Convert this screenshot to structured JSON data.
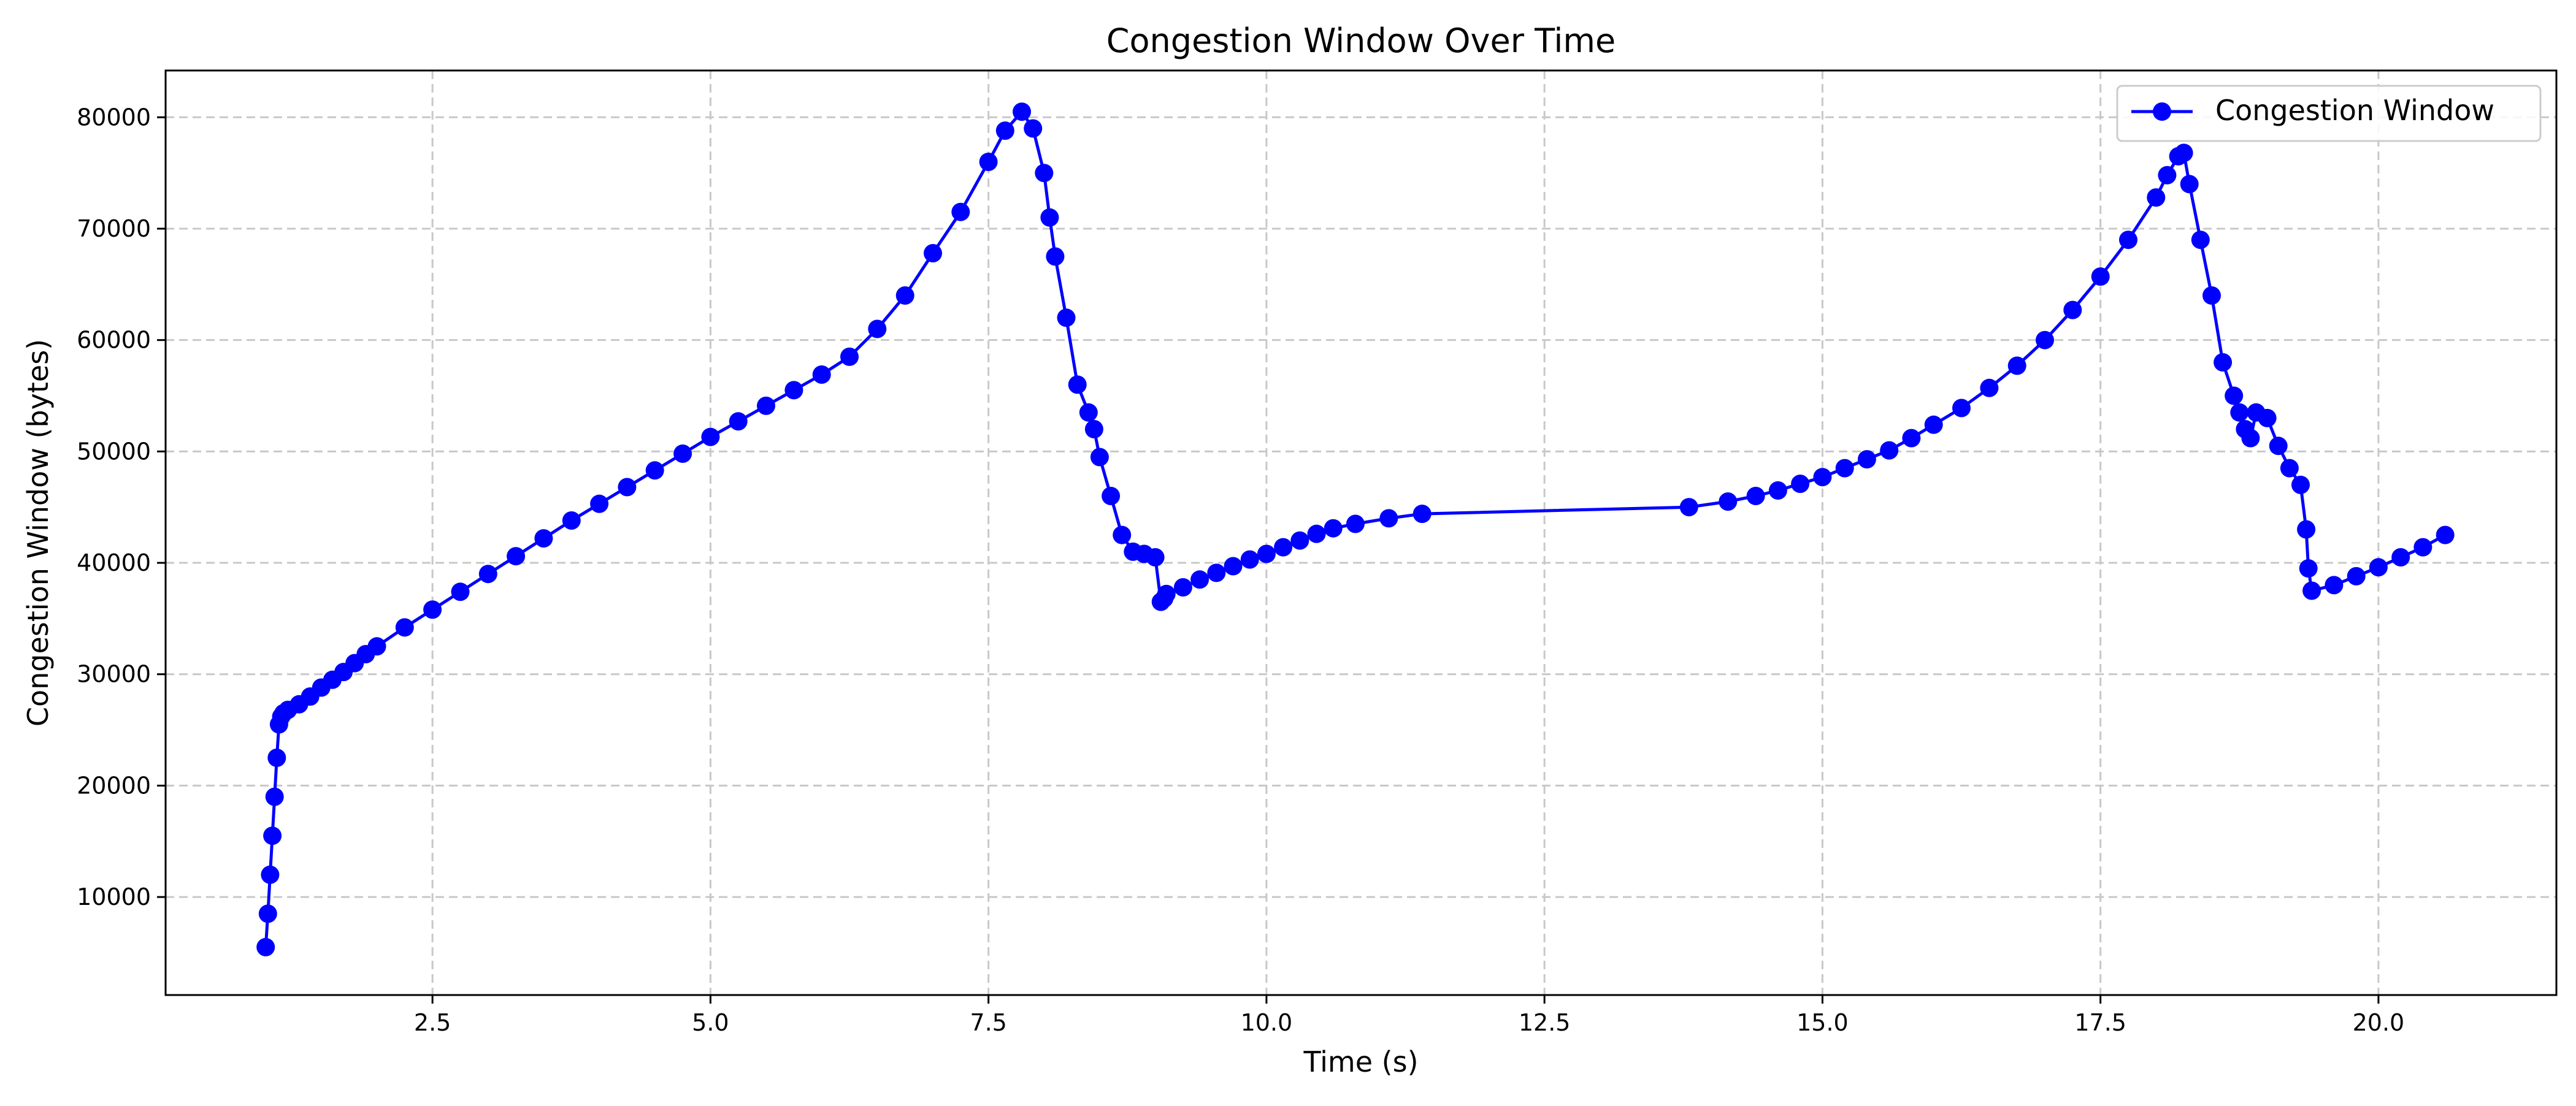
{
  "chart_data": {
    "type": "line",
    "title": "Congestion Window Over Time",
    "xlabel": "Time (s)",
    "ylabel": "Congestion Window (bytes)",
    "xlim": [
      0.1,
      21.6
    ],
    "ylim": [
      1200,
      84200
    ],
    "xticks": [
      2.5,
      5.0,
      7.5,
      10.0,
      12.5,
      15.0,
      17.5,
      20.0
    ],
    "xtick_labels": [
      "2.5",
      "5.0",
      "7.5",
      "10.0",
      "12.5",
      "15.0",
      "17.5",
      "20.0"
    ],
    "yticks": [
      10000,
      20000,
      30000,
      40000,
      50000,
      60000,
      70000,
      80000
    ],
    "ytick_labels": [
      "10000",
      "20000",
      "30000",
      "40000",
      "50000",
      "60000",
      "70000",
      "80000"
    ],
    "grid": true,
    "legend_position": "top-right",
    "series_color": "#0000ff",
    "grid_color": "#c8c8c8",
    "series": [
      {
        "name": "Congestion Window",
        "x": [
          1.0,
          1.02,
          1.04,
          1.06,
          1.08,
          1.1,
          1.12,
          1.14,
          1.16,
          1.2,
          1.3,
          1.4,
          1.5,
          1.6,
          1.7,
          1.8,
          1.9,
          2.0,
          2.25,
          2.5,
          2.75,
          3.0,
          3.25,
          3.5,
          3.75,
          4.0,
          4.25,
          4.5,
          4.75,
          5.0,
          5.25,
          5.5,
          5.75,
          6.0,
          6.25,
          6.5,
          6.75,
          7.0,
          7.25,
          7.5,
          7.65,
          7.8,
          7.9,
          8.0,
          8.05,
          8.1,
          8.2,
          8.3,
          8.4,
          8.45,
          8.5,
          8.6,
          8.7,
          8.8,
          8.9,
          9.0,
          9.05,
          9.08,
          9.1,
          9.25,
          9.4,
          9.55,
          9.7,
          9.85,
          10.0,
          10.15,
          10.3,
          10.45,
          10.6,
          10.8,
          11.1,
          11.4,
          13.8,
          14.15,
          14.4,
          14.6,
          14.8,
          15.0,
          15.2,
          15.4,
          15.6,
          15.8,
          16.0,
          16.25,
          16.5,
          16.75,
          17.0,
          17.25,
          17.5,
          17.75,
          18.0,
          18.1,
          18.2,
          18.25,
          18.3,
          18.4,
          18.5,
          18.6,
          18.7,
          18.75,
          18.8,
          18.85,
          18.9,
          19.0,
          19.1,
          19.2,
          19.3,
          19.35,
          19.37,
          19.4,
          19.6,
          19.8,
          20.0,
          20.2,
          20.4,
          20.6
        ],
        "values": [
          5500,
          8500,
          12000,
          15500,
          19000,
          22500,
          25500,
          26200,
          26500,
          26800,
          27300,
          28000,
          28800,
          29500,
          30200,
          31000,
          31800,
          32500,
          34200,
          35800,
          37400,
          39000,
          40600,
          42200,
          43800,
          45300,
          46800,
          48300,
          49800,
          51300,
          52700,
          54100,
          55500,
          56900,
          58500,
          61000,
          64000,
          67800,
          71500,
          76000,
          78800,
          80500,
          79000,
          75000,
          71000,
          67500,
          62000,
          56000,
          53500,
          52000,
          49500,
          46000,
          42500,
          41000,
          40800,
          40500,
          36500,
          36800,
          37200,
          37800,
          38500,
          39100,
          39700,
          40300,
          40800,
          41400,
          42000,
          42600,
          43100,
          43500,
          44000,
          44400,
          45000,
          45500,
          46000,
          46500,
          47100,
          47700,
          48500,
          49300,
          50100,
          51200,
          52400,
          53900,
          55700,
          57700,
          60000,
          62700,
          65700,
          69000,
          72800,
          74800,
          76500,
          76800,
          74000,
          69000,
          64000,
          58000,
          55000,
          53500,
          52000,
          51200,
          53500,
          53000,
          50500,
          48500,
          47000,
          43000,
          39500,
          37500,
          38000,
          38800,
          39600,
          40500,
          41400,
          42500
        ]
      }
    ]
  }
}
